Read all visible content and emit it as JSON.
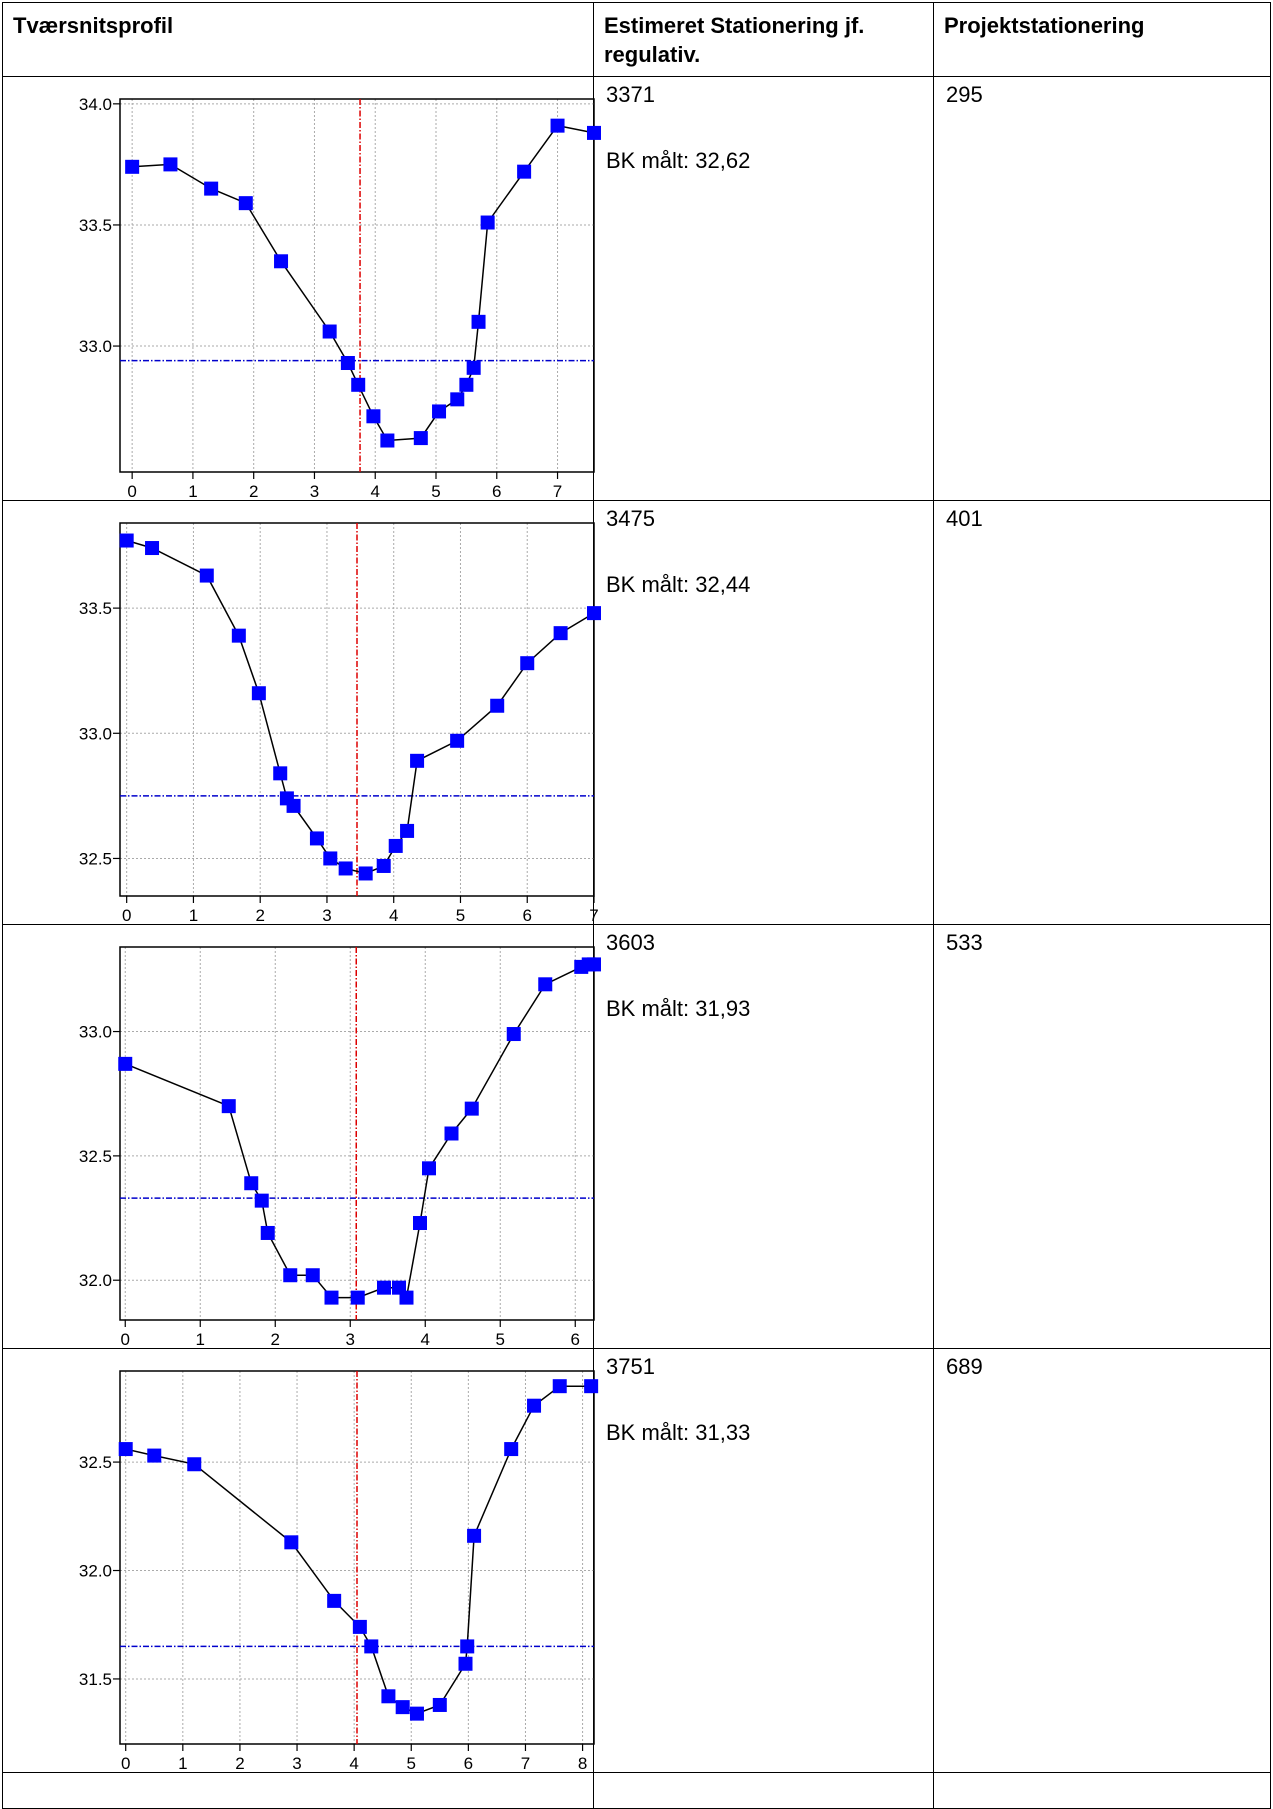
{
  "table": {
    "headers": [
      "Tværsnitsprofil",
      "Estimeret Stationering jf. regulativ.",
      "Projektstationering"
    ],
    "rows": [
      {
        "estimated": "3371",
        "bk": "BK målt: 32,62",
        "project": "295"
      },
      {
        "estimated": "3475",
        "bk": "BK målt: 32,44",
        "project": "401"
      },
      {
        "estimated": "3603",
        "bk": "BK målt: 31,93",
        "project": "533"
      },
      {
        "estimated": "3751",
        "bk": "BK målt: 31,33",
        "project": "689"
      }
    ]
  },
  "colors": {
    "marker": "#0000ff",
    "line": "#000000",
    "ref_horizontal": "#0000cc",
    "ref_vertical": "#dd0000",
    "grid": "#aaaaaa"
  },
  "chart_data": [
    {
      "type": "line",
      "xlim": [
        -0.2,
        7.6
      ],
      "ylim": [
        32.48,
        34.02
      ],
      "xticks": [
        0,
        1,
        2,
        3,
        4,
        5,
        6,
        7
      ],
      "yticks": [
        33.0,
        33.5,
        34.0
      ],
      "ytick_labels": [
        "33.0",
        "33.5",
        "34.0"
      ],
      "vline": 3.75,
      "hline": 32.94,
      "x": [
        0,
        0.63,
        1.3,
        1.87,
        2.45,
        3.25,
        3.55,
        3.72,
        3.97,
        4.2,
        4.75,
        5.05,
        5.35,
        5.5,
        5.62,
        5.7,
        5.85,
        6.45,
        7.0,
        7.6
      ],
      "y": [
        33.74,
        33.75,
        33.65,
        33.59,
        33.35,
        33.06,
        32.93,
        32.84,
        32.71,
        32.61,
        32.62,
        32.73,
        32.78,
        32.84,
        32.91,
        33.1,
        33.51,
        33.72,
        33.91,
        33.88
      ]
    },
    {
      "type": "line",
      "xlim": [
        -0.1,
        7.0
      ],
      "ylim": [
        32.35,
        33.84
      ],
      "xticks": [
        0,
        1,
        2,
        3,
        4,
        5,
        6,
        7
      ],
      "yticks": [
        32.5,
        33.0,
        33.5
      ],
      "ytick_labels": [
        "32.5",
        "33.0",
        "33.5"
      ],
      "vline": 3.45,
      "hline": 32.75,
      "x": [
        0,
        0.38,
        1.2,
        1.68,
        1.98,
        2.3,
        2.4,
        2.5,
        2.85,
        3.05,
        3.28,
        3.58,
        3.85,
        4.03,
        4.2,
        4.35,
        4.95,
        5.55,
        6.0,
        6.5,
        7.0
      ],
      "y": [
        33.77,
        33.74,
        33.63,
        33.39,
        33.16,
        32.84,
        32.74,
        32.71,
        32.58,
        32.5,
        32.46,
        32.44,
        32.47,
        32.55,
        32.61,
        32.89,
        32.97,
        33.11,
        33.28,
        33.4,
        33.48
      ]
    },
    {
      "type": "line",
      "xlim": [
        -0.07,
        6.25
      ],
      "ylim": [
        31.84,
        33.34
      ],
      "xticks": [
        0,
        1,
        2,
        3,
        4,
        5,
        6
      ],
      "yticks": [
        32.0,
        32.5,
        33.0
      ],
      "ytick_labels": [
        "32.0",
        "32.5",
        "33.0"
      ],
      "vline": 3.08,
      "hline": 32.33,
      "x": [
        0,
        1.38,
        1.68,
        1.82,
        1.9,
        2.2,
        2.5,
        2.75,
        3.1,
        3.45,
        3.65,
        3.75,
        3.93,
        4.05,
        4.35,
        4.62,
        5.18,
        5.6,
        6.08,
        6.18,
        6.25
      ],
      "y": [
        32.87,
        32.7,
        32.39,
        32.32,
        32.19,
        32.02,
        32.02,
        31.93,
        31.93,
        31.97,
        31.97,
        31.93,
        32.23,
        32.45,
        32.59,
        32.69,
        32.99,
        33.19,
        33.26,
        33.27,
        33.27
      ]
    },
    {
      "type": "line",
      "xlim": [
        -0.1,
        8.2
      ],
      "ylim": [
        31.2,
        32.92
      ],
      "xticks": [
        0,
        1,
        2,
        3,
        4,
        5,
        6,
        7,
        8
      ],
      "yticks": [
        31.5,
        32.0,
        32.5
      ],
      "ytick_labels": [
        "31.5",
        "32.0",
        "32.5"
      ],
      "vline": 4.05,
      "hline": 31.65,
      "x": [
        0,
        0.5,
        1.2,
        2.9,
        3.65,
        4.1,
        4.3,
        4.6,
        4.85,
        5.1,
        5.5,
        5.95,
        5.98,
        6.1,
        6.75,
        7.15,
        7.6,
        8.15
      ],
      "y": [
        32.56,
        32.53,
        32.49,
        32.13,
        31.86,
        31.74,
        31.65,
        31.42,
        31.37,
        31.34,
        31.38,
        31.57,
        31.65,
        32.16,
        32.56,
        32.76,
        32.85,
        32.85
      ]
    }
  ]
}
